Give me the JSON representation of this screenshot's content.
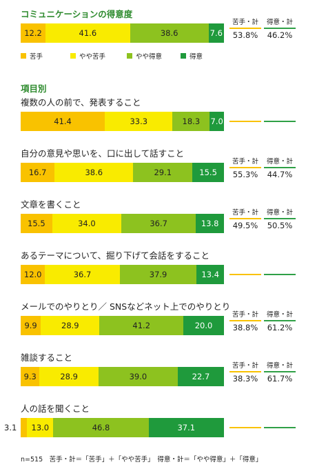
{
  "chart_data": {
    "type": "bar",
    "title": "コミュニケーションの得意度",
    "section_label": "項目別",
    "legend": [
      "苦手",
      "やや苦手",
      "やや得意",
      "得意"
    ],
    "colors": [
      "#f9c200",
      "#f9eb00",
      "#8dc21f",
      "#1f9a3c"
    ],
    "summary_labels": {
      "weak": "苦手・計",
      "strong": "得意・計"
    },
    "summary_colors": {
      "weak": "#f9c200",
      "strong": "#2fa046"
    },
    "overall": {
      "values": [
        12.2,
        41.6,
        38.6,
        7.6
      ],
      "weak_total": "53.8%",
      "strong_total": "46.2%"
    },
    "items": [
      {
        "label": "複数の人の前で、発表すること",
        "values": [
          41.4,
          33.3,
          18.3,
          7.0
        ],
        "weak_total": "",
        "strong_total": ""
      },
      {
        "label": "自分の意見や思いを、口に出して話すこと",
        "values": [
          16.7,
          38.6,
          29.1,
          15.5
        ],
        "weak_total": "55.3%",
        "strong_total": "44.7%"
      },
      {
        "label": "文章を書くこと",
        "values": [
          15.5,
          34.0,
          36.7,
          13.8
        ],
        "weak_total": "49.5%",
        "strong_total": "50.5%"
      },
      {
        "label": "あるテーマについて、掘り下げて会話をすること",
        "values": [
          12.0,
          36.7,
          37.9,
          13.4
        ],
        "weak_total": "",
        "strong_total": ""
      },
      {
        "label": "メールでのやりとり／ SNSなどネット上でのやりとり",
        "values": [
          9.9,
          28.9,
          41.2,
          20.0
        ],
        "weak_total": "38.8%",
        "strong_total": "61.2%"
      },
      {
        "label": "雑談すること",
        "values": [
          9.3,
          28.9,
          39.0,
          22.7
        ],
        "weak_total": "38.3%",
        "strong_total": "61.7%"
      },
      {
        "label": "人の話を聞くこと",
        "values": [
          3.1,
          13.0,
          46.8,
          37.1
        ],
        "weak_total": "",
        "strong_total": ""
      }
    ],
    "footnote": "n=515　苦手・計＝「苦手」＋「やや苦手」　得意・計＝「やや得意」＋「得意」"
  }
}
